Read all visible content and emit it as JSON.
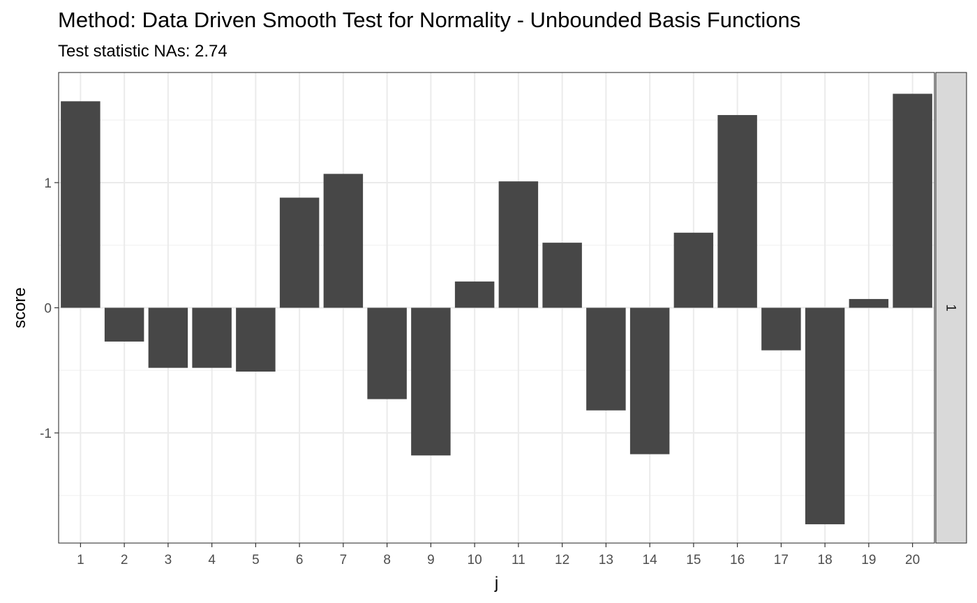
{
  "chart_data": {
    "type": "bar",
    "title": "Method: Data Driven Smooth Test for Normality - Unbounded Basis Functions",
    "subtitle": "Test statistic NAs: 2.74",
    "xlabel": "j",
    "ylabel": "score",
    "facet_label": "1",
    "categories": [
      "1",
      "2",
      "3",
      "4",
      "5",
      "6",
      "7",
      "8",
      "9",
      "10",
      "11",
      "12",
      "13",
      "14",
      "15",
      "16",
      "17",
      "18",
      "19",
      "20"
    ],
    "values": [
      1.65,
      -0.27,
      -0.48,
      -0.48,
      -0.51,
      0.88,
      1.07,
      -0.73,
      -1.18,
      0.21,
      1.01,
      0.52,
      -0.82,
      -1.17,
      0.6,
      1.54,
      -0.34,
      -1.73,
      0.07,
      1.71
    ],
    "ylim": [
      -1.88,
      1.88
    ],
    "yticks": [
      -1,
      0,
      1
    ],
    "ytick_labels": [
      "-1",
      "0",
      "1"
    ],
    "grid": true,
    "theme": "bw",
    "colors": {
      "bar": "#474747",
      "grid_major": "#ebebeb",
      "grid_minor": "#f2f2f2",
      "panel_border": "#333333",
      "strip_fill": "#d9d9d9",
      "tick_text": "#4d4d4d"
    }
  }
}
